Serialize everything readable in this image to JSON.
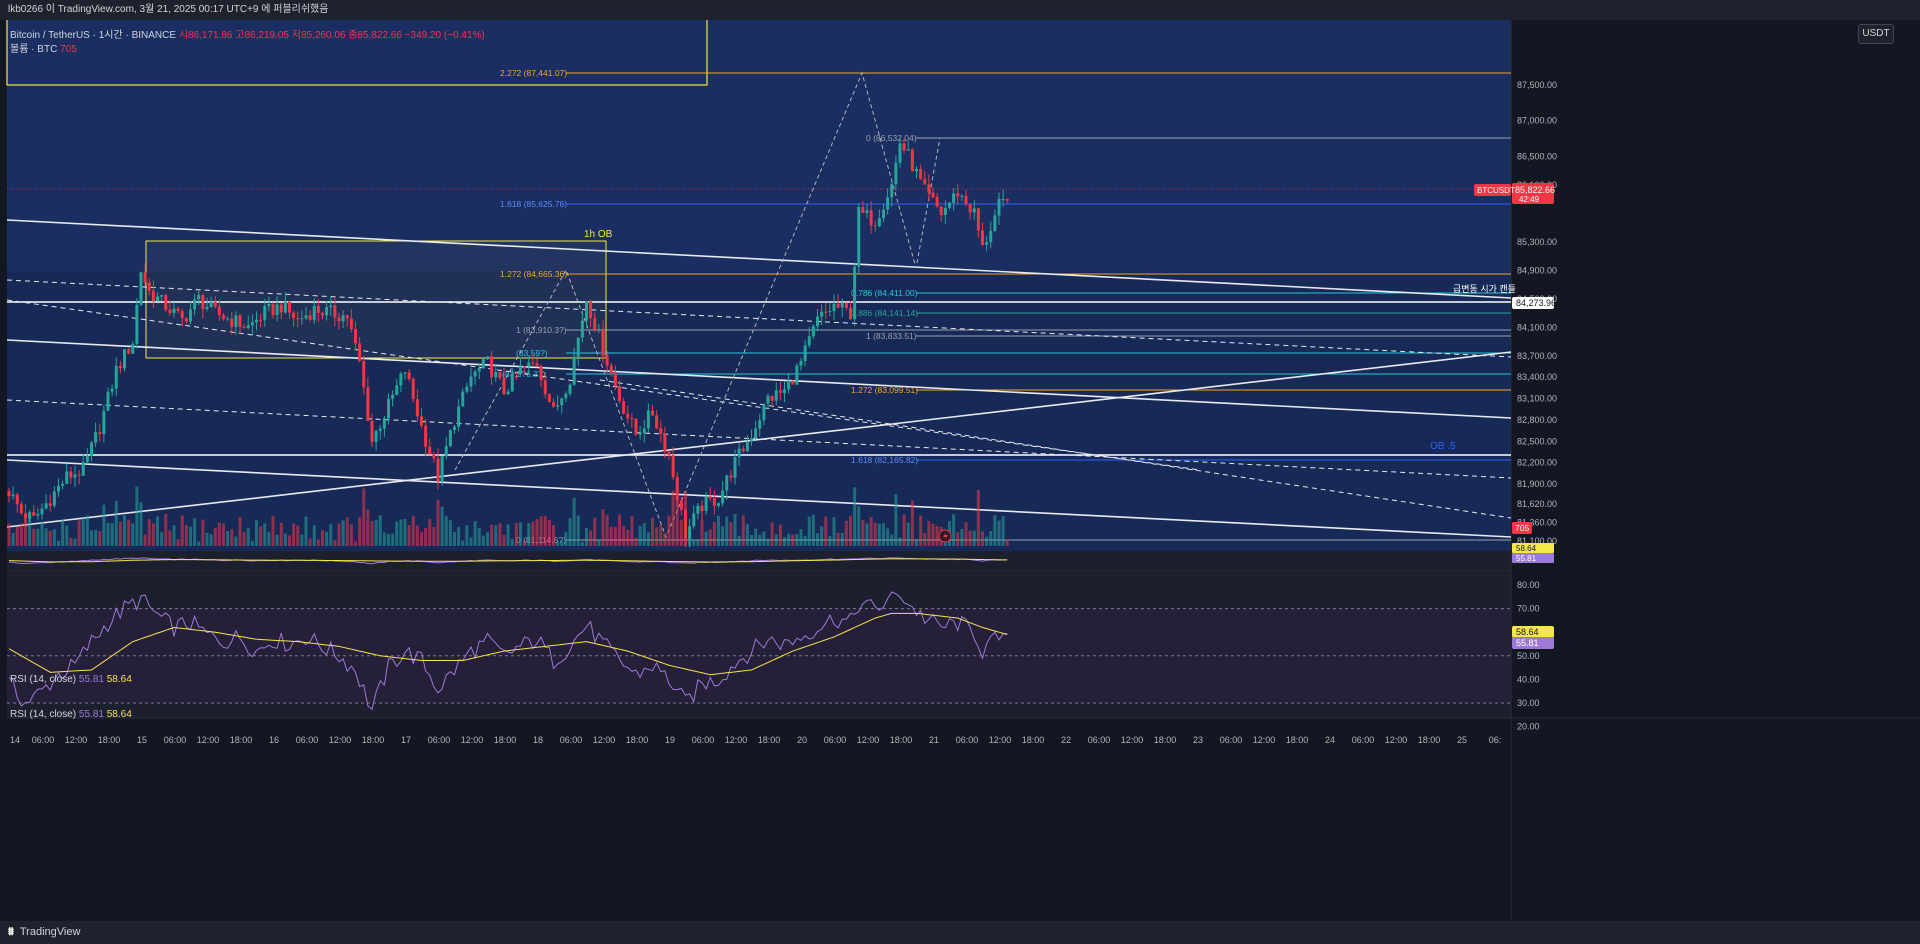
{
  "header": {
    "title": "lkb0266 이 TradingView.com, 3월 21, 2025 00:17 UTC+9 에 퍼블리쉬했음"
  },
  "legend": {
    "symbol": "Bitcoin / TetherUS · 1시간 · BINANCE",
    "ohlc": "시86,171.86  고86,219.05  저85,260.06  종85,822.66  −349.20 (−0.41%)",
    "volume_label": "볼륨 · BTC",
    "volume_value": "705",
    "rsi_label": "RSI (14, close)",
    "rsi_value": "55.81",
    "rsi_ma_value": "58.64"
  },
  "currency_button": "USDT",
  "footer": {
    "logo": "⩩",
    "brand": "TradingView"
  },
  "price_axis": {
    "ticks": [
      "87,500.00",
      "87,000.00",
      "86,500.00",
      "86,100.00",
      "85,300.00",
      "84,900.00",
      "84,500.00",
      "84,100.00",
      "83,700.00",
      "83,400.00",
      "83,100.00",
      "82,800.00",
      "82,500.00",
      "82,200.00",
      "81,900.00",
      "81,620.00",
      "81,360.00",
      "81,100.00"
    ],
    "current_price": "85,822.66",
    "current_countdown": "42:49",
    "symbol_tag": "BTCUSDT",
    "white_tag": "84,273.96",
    "volume_tag": "705",
    "rsi_tag_ma": "58.64",
    "rsi_tag": "55.81"
  },
  "rsi_axis": {
    "ticks": [
      "80.00",
      "70.00",
      "60.00",
      "50.00",
      "40.00",
      "30.00",
      "20.00"
    ]
  },
  "time_axis": {
    "labels": [
      "14",
      "06:00",
      "12:00",
      "18:00",
      "15",
      "06:00",
      "12:00",
      "18:00",
      "16",
      "06:00",
      "12:00",
      "18:00",
      "17",
      "06:00",
      "12:00",
      "18:00",
      "18",
      "06:00",
      "12:00",
      "18:00",
      "19",
      "06:00",
      "12:00",
      "18:00",
      "20",
      "06:00",
      "12:00",
      "18:00",
      "21",
      "06:00",
      "12:00",
      "18:00",
      "22",
      "06:00",
      "12:00",
      "18:00",
      "23",
      "06:00",
      "12:00",
      "18:00",
      "24",
      "06:00",
      "12:00",
      "18:00",
      "25",
      "06:"
    ]
  },
  "annotations": {
    "fib_2272": "2.272 (87,441.07)",
    "fib_0": "0 (86,532.04)",
    "fib_1618_top": "1.618 (85,625.76)",
    "fib_1272_top": "1.272 (84,665.36)",
    "fib_0786": "0.786 (84,411.00)",
    "fib_0886": "0.886 (84,141.14)",
    "fib_1_a": "1 (83,910.3?)",
    "fib_1_b": "1 (83,833.51)",
    "fib_mid_a": "(83,59?)",
    "fib_mid_b": "(83,2?6.37)",
    "fib_1272_bot": "1.272 (83,099.51)",
    "fib_1618_bot": "1.618 (82,165.82)",
    "fib_0_bot": "0 (81,114.6?)",
    "ob_1h": "1h OB",
    "ob_5": "OB .5",
    "korean_note": "급변동 시가 캔들"
  },
  "colors": {
    "background": "#131722",
    "panel_blue": "#1a2c5c",
    "up": "#26a69a",
    "down": "#f23645",
    "fib_orange": "#f5a623",
    "fib_blue": "#2962ff",
    "fib_teal": "#26c6da",
    "rsi_line": "#9c7bd8",
    "rsi_ma": "#f5e649"
  },
  "chart_data": [
    {
      "type": "candlestick",
      "title": "Bitcoin / TetherUS · 1시간 · BINANCE",
      "xlabel": "",
      "ylabel": "",
      "ylim": [
        81100,
        87600
      ],
      "x_range_hours": [
        0,
        282
      ],
      "key_prices": {
        "open": 86171.86,
        "high": 86219.05,
        "low": 85260.06,
        "close": 85822.66,
        "change": -349.2,
        "change_pct": -0.41
      },
      "anchors": [
        [
          0,
          81800
        ],
        [
          3,
          81500
        ],
        [
          6,
          81400
        ],
        [
          10,
          81700
        ],
        [
          14,
          82000
        ],
        [
          18,
          82100
        ],
        [
          22,
          82700
        ],
        [
          26,
          83500
        ],
        [
          30,
          83900
        ],
        [
          32,
          84900
        ],
        [
          34,
          84600
        ],
        [
          38,
          84400
        ],
        [
          42,
          84200
        ],
        [
          46,
          84500
        ],
        [
          50,
          84300
        ],
        [
          54,
          84200
        ],
        [
          58,
          84100
        ],
        [
          62,
          84300
        ],
        [
          66,
          84400
        ],
        [
          70,
          84200
        ],
        [
          74,
          84350
        ],
        [
          78,
          84300
        ],
        [
          82,
          84250
        ],
        [
          85,
          83600
        ],
        [
          88,
          82500
        ],
        [
          92,
          83000
        ],
        [
          96,
          83500
        ],
        [
          100,
          82700
        ],
        [
          104,
          82000
        ],
        [
          108,
          82800
        ],
        [
          112,
          83400
        ],
        [
          116,
          83600
        ],
        [
          120,
          83200
        ],
        [
          124,
          83500
        ],
        [
          128,
          83600
        ],
        [
          132,
          82900
        ],
        [
          136,
          83400
        ],
        [
          140,
          84500
        ],
        [
          144,
          83800
        ],
        [
          148,
          83100
        ],
        [
          152,
          82600
        ],
        [
          156,
          82900
        ],
        [
          160,
          82300
        ],
        [
          164,
          81200
        ],
        [
          168,
          81600
        ],
        [
          172,
          81700
        ],
        [
          176,
          82200
        ],
        [
          180,
          82600
        ],
        [
          184,
          83100
        ],
        [
          188,
          83200
        ],
        [
          192,
          83600
        ],
        [
          196,
          84200
        ],
        [
          200,
          84400
        ],
        [
          204,
          84300
        ],
        [
          206,
          85700
        ],
        [
          210,
          85600
        ],
        [
          214,
          86100
        ],
        [
          216,
          86700
        ],
        [
          218,
          86500
        ],
        [
          222,
          86000
        ],
        [
          226,
          85700
        ],
        [
          230,
          86000
        ],
        [
          234,
          85700
        ],
        [
          236,
          85200
        ],
        [
          240,
          85800
        ],
        [
          242,
          85823
        ]
      ]
    },
    {
      "type": "line",
      "title": "RSI (14, close)",
      "series": [
        {
          "name": "RSI"
        },
        {
          "name": "MA"
        }
      ],
      "ylim": [
        20,
        85
      ],
      "levels": [
        70,
        50,
        30
      ],
      "rsi_anchors": [
        [
          0,
          38
        ],
        [
          4,
          30
        ],
        [
          8,
          35
        ],
        [
          12,
          42
        ],
        [
          16,
          46
        ],
        [
          20,
          56
        ],
        [
          24,
          64
        ],
        [
          28,
          70
        ],
        [
          32,
          74
        ],
        [
          36,
          67
        ],
        [
          40,
          62
        ],
        [
          44,
          64
        ],
        [
          48,
          59
        ],
        [
          52,
          56
        ],
        [
          56,
          58
        ],
        [
          60,
          52
        ],
        [
          64,
          57
        ],
        [
          68,
          55
        ],
        [
          72,
          58
        ],
        [
          76,
          54
        ],
        [
          80,
          50
        ],
        [
          84,
          44
        ],
        [
          88,
          27
        ],
        [
          92,
          45
        ],
        [
          96,
          52
        ],
        [
          100,
          48
        ],
        [
          104,
          36
        ],
        [
          108,
          44
        ],
        [
          112,
          52
        ],
        [
          116,
          56
        ],
        [
          120,
          50
        ],
        [
          124,
          54
        ],
        [
          128,
          57
        ],
        [
          132,
          48
        ],
        [
          136,
          54
        ],
        [
          140,
          63
        ],
        [
          144,
          55
        ],
        [
          148,
          48
        ],
        [
          152,
          42
        ],
        [
          156,
          46
        ],
        [
          160,
          40
        ],
        [
          164,
          30
        ],
        [
          168,
          38
        ],
        [
          172,
          40
        ],
        [
          176,
          47
        ],
        [
          180,
          52
        ],
        [
          184,
          57
        ],
        [
          188,
          55
        ],
        [
          192,
          58
        ],
        [
          196,
          62
        ],
        [
          200,
          66
        ],
        [
          204,
          64
        ],
        [
          206,
          72
        ],
        [
          210,
          70
        ],
        [
          214,
          74
        ],
        [
          216,
          77
        ],
        [
          218,
          72
        ],
        [
          222,
          66
        ],
        [
          226,
          62
        ],
        [
          230,
          64
        ],
        [
          234,
          60
        ],
        [
          236,
          52
        ],
        [
          240,
          58
        ],
        [
          242,
          56
        ]
      ],
      "ma_anchors": [
        [
          0,
          53
        ],
        [
          10,
          43
        ],
        [
          20,
          44
        ],
        [
          30,
          56
        ],
        [
          40,
          62
        ],
        [
          50,
          60
        ],
        [
          60,
          57
        ],
        [
          70,
          56
        ],
        [
          80,
          54
        ],
        [
          90,
          50
        ],
        [
          100,
          48
        ],
        [
          110,
          48
        ],
        [
          120,
          52
        ],
        [
          130,
          54
        ],
        [
          140,
          56
        ],
        [
          150,
          52
        ],
        [
          160,
          46
        ],
        [
          170,
          42
        ],
        [
          180,
          44
        ],
        [
          190,
          52
        ],
        [
          200,
          58
        ],
        [
          210,
          66
        ],
        [
          214,
          68
        ],
        [
          220,
          68
        ],
        [
          230,
          66
        ],
        [
          236,
          62
        ],
        [
          242,
          59
        ]
      ]
    }
  ]
}
